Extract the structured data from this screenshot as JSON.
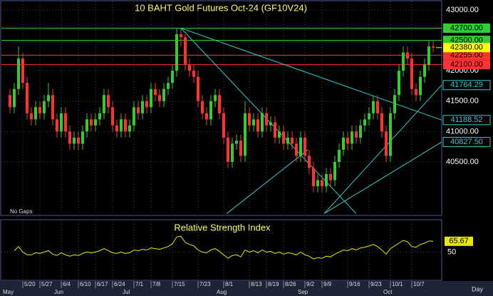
{
  "chart_data": {
    "type": "candlestick",
    "title": "10 BAHT Gold Futures Oct-24 (GF10V24)",
    "note": "No Gaps",
    "interval": "Day",
    "up_color": "#33cc33",
    "down_color": "#ff3333",
    "grid": true,
    "ylim": [
      39620,
      43140
    ],
    "yticks": [
      {
        "value": 43000,
        "label": "43000.00"
      },
      {
        "value": 42000,
        "label": "42000.00"
      },
      {
        "value": 41500,
        "label": "41500.00"
      },
      {
        "value": 41000,
        "label": "41000.00"
      },
      {
        "value": 40500,
        "label": "40500.00"
      }
    ],
    "categories": [
      null,
      null,
      null,
      "5/20",
      null,
      null,
      null,
      "5/27",
      null,
      null,
      null,
      null,
      "6/4",
      null,
      null,
      null,
      "6/10",
      null,
      null,
      null,
      "6/17",
      null,
      null,
      null,
      "6/24",
      null,
      null,
      null,
      null,
      "7/1",
      null,
      null,
      null,
      "7/8",
      null,
      null,
      null,
      null,
      "7/15",
      null,
      null,
      null,
      null,
      null,
      "7/23",
      null,
      null,
      null,
      null,
      null,
      "8/1",
      null,
      null,
      null,
      null,
      null,
      "8/13",
      null,
      null,
      null,
      "8/19",
      null,
      null,
      null,
      "8/26",
      null,
      null,
      null,
      null,
      "9/2",
      null,
      null,
      null,
      "9/9",
      null,
      null,
      null,
      null,
      null,
      "9/16",
      null,
      null,
      null,
      null,
      "9/23",
      null,
      null,
      null,
      null,
      "10/1",
      null,
      null,
      null,
      null,
      "10/7",
      null,
      null,
      null,
      null,
      null
    ],
    "months": [
      {
        "index": 0,
        "label": "May"
      },
      {
        "index": 12,
        "label": "Jun"
      },
      {
        "index": 28,
        "label": "Jul"
      },
      {
        "index": 50,
        "label": "Aug"
      },
      {
        "index": 69,
        "label": "Sep"
      },
      {
        "index": 89,
        "label": "Oct"
      }
    ],
    "candles": [
      [
        41600,
        41700,
        41300,
        41400
      ],
      [
        41400,
        41800,
        41300,
        41700
      ],
      [
        41700,
        42400,
        41600,
        42200
      ],
      [
        42200,
        42300,
        41700,
        41800
      ],
      [
        41800,
        41900,
        41200,
        41300
      ],
      [
        41300,
        41400,
        41100,
        41200
      ],
      [
        41200,
        41500,
        41100,
        41400
      ],
      [
        41400,
        41500,
        41200,
        41300
      ],
      [
        41300,
        41600,
        41200,
        41500
      ],
      [
        41500,
        41800,
        41400,
        41600
      ],
      [
        41600,
        41700,
        41100,
        41200
      ],
      [
        41200,
        41300,
        40900,
        41000
      ],
      [
        41000,
        41400,
        40900,
        41300
      ],
      [
        41300,
        41400,
        40900,
        41000
      ],
      [
        41000,
        41100,
        40700,
        40800
      ],
      [
        40800,
        41000,
        40700,
        40900
      ],
      [
        40900,
        41000,
        40700,
        40800
      ],
      [
        40800,
        41100,
        40700,
        41000
      ],
      [
        41000,
        41300,
        40900,
        41200
      ],
      [
        41200,
        41300,
        41000,
        41100
      ],
      [
        41100,
        41300,
        41000,
        41200
      ],
      [
        41200,
        41400,
        41100,
        41300
      ],
      [
        41300,
        41700,
        41200,
        41600
      ],
      [
        41600,
        41700,
        41300,
        41400
      ],
      [
        41400,
        41500,
        41000,
        41100
      ],
      [
        41100,
        41200,
        40900,
        41000
      ],
      [
        41000,
        41300,
        40900,
        41200
      ],
      [
        41200,
        41300,
        40900,
        41000
      ],
      [
        41000,
        41200,
        40900,
        41100
      ],
      [
        41100,
        41500,
        41000,
        41400
      ],
      [
        41400,
        41500,
        41200,
        41300
      ],
      [
        41300,
        41600,
        41200,
        41500
      ],
      [
        41500,
        41600,
        41300,
        41400
      ],
      [
        41400,
        41800,
        41300,
        41700
      ],
      [
        41700,
        41800,
        41500,
        41600
      ],
      [
        41600,
        41700,
        41400,
        41500
      ],
      [
        41500,
        41800,
        41400,
        41700
      ],
      [
        41700,
        41900,
        41600,
        41800
      ],
      [
        41800,
        42100,
        41700,
        42000
      ],
      [
        42000,
        42700,
        41900,
        42600
      ],
      [
        42600,
        42700,
        42400,
        42550
      ],
      [
        42550,
        42600,
        42000,
        42100
      ],
      [
        42100,
        42200,
        41900,
        42000
      ],
      [
        42000,
        42100,
        41800,
        41900
      ],
      [
        41900,
        42000,
        41400,
        41500
      ],
      [
        41500,
        41600,
        41200,
        41300
      ],
      [
        41300,
        41400,
        41100,
        41200
      ],
      [
        41200,
        41600,
        41100,
        41500
      ],
      [
        41500,
        41700,
        41400,
        41600
      ],
      [
        41600,
        41700,
        41200,
        41300
      ],
      [
        41300,
        41400,
        40800,
        40900
      ],
      [
        40900,
        41000,
        40400,
        40500
      ],
      [
        40500,
        40900,
        40400,
        40800
      ],
      [
        40800,
        40950,
        40700,
        40850
      ],
      [
        40850,
        40950,
        40500,
        40600
      ],
      [
        40600,
        41500,
        40500,
        41300
      ],
      [
        41300,
        41400,
        41000,
        41100
      ],
      [
        41100,
        41300,
        41000,
        41200
      ],
      [
        41200,
        41300,
        40900,
        41000
      ],
      [
        41000,
        41400,
        40900,
        41300
      ],
      [
        41300,
        41400,
        41000,
        41100
      ],
      [
        41100,
        41250,
        41000,
        41150
      ],
      [
        41150,
        41250,
        40800,
        40900
      ],
      [
        40900,
        41100,
        40800,
        41000
      ],
      [
        41000,
        41100,
        40700,
        40800
      ],
      [
        40800,
        41000,
        40700,
        40900
      ],
      [
        40900,
        41000,
        40700,
        40800
      ],
      [
        40800,
        40900,
        40500,
        40600
      ],
      [
        40600,
        41000,
        40500,
        40900
      ],
      [
        40900,
        41000,
        40500,
        40600
      ],
      [
        40600,
        40700,
        40300,
        40400
      ],
      [
        40400,
        40500,
        40000,
        40100
      ],
      [
        40100,
        40300,
        40000,
        40200
      ],
      [
        40200,
        40300,
        40000,
        40100
      ],
      [
        40100,
        40400,
        40000,
        40300
      ],
      [
        40300,
        40400,
        40100,
        40200
      ],
      [
        40200,
        40600,
        40100,
        40500
      ],
      [
        40500,
        40800,
        40400,
        40700
      ],
      [
        40700,
        41000,
        40600,
        40900
      ],
      [
        40900,
        41000,
        40700,
        40800
      ],
      [
        40800,
        41100,
        40700,
        41000
      ],
      [
        41000,
        41100,
        40800,
        40900
      ],
      [
        40900,
        41200,
        40800,
        41100
      ],
      [
        41100,
        41300,
        41000,
        41200
      ],
      [
        41200,
        41400,
        41100,
        41300
      ],
      [
        41300,
        41600,
        41200,
        41500
      ],
      [
        41500,
        41600,
        41200,
        41300
      ],
      [
        41300,
        41400,
        40900,
        41000
      ],
      [
        41000,
        41100,
        40500,
        40600
      ],
      [
        40600,
        41400,
        40500,
        41300
      ],
      [
        41300,
        41700,
        41200,
        41600
      ],
      [
        41600,
        42100,
        41500,
        42000
      ],
      [
        42000,
        42400,
        41900,
        42300
      ],
      [
        42300,
        42400,
        42100,
        42200
      ],
      [
        42200,
        42300,
        41600,
        41700
      ],
      [
        41700,
        41800,
        41500,
        41600
      ],
      [
        41600,
        42000,
        41500,
        41900
      ],
      [
        41900,
        42200,
        41800,
        42100
      ],
      [
        42100,
        42500,
        42000,
        42400
      ],
      [
        42400,
        42500,
        42300,
        42380
      ]
    ],
    "levels": [
      {
        "value": 42700,
        "label": "42700.00",
        "color": "#33cc33"
      },
      {
        "value": 42500,
        "label": "42500.00",
        "color": "#33cc33"
      },
      {
        "value": 42255,
        "label": "42255.00",
        "color": "#ff3333"
      },
      {
        "value": 42100,
        "label": "42100.00",
        "color": "#ff3333"
      }
    ],
    "last": {
      "value": 42380,
      "label": "42380.00",
      "color": "#ffff00"
    },
    "trendline_color": "#33cccc",
    "trendlines": [
      {
        "from": [
          40,
          42700
        ],
        "to": [
          101,
          41188.52
        ],
        "label": "41188.52"
      },
      {
        "from": [
          40,
          42700
        ],
        "to": [
          81,
          39650
        ]
      },
      {
        "from": [
          50.7,
          39650
        ],
        "to": [
          69.7,
          40700
        ]
      },
      {
        "from": [
          73.5,
          39650
        ],
        "to": [
          101,
          41764.29
        ],
        "label": "41764.29"
      },
      {
        "from": [
          73.5,
          39650
        ],
        "to": [
          101,
          40827.5
        ],
        "label": "40827.50"
      }
    ],
    "rsi": {
      "title": "Relative Strength Index",
      "color": "#e8e800",
      "ylim": [
        10,
        95
      ],
      "yticks": [
        50
      ],
      "values": [
        null,
        52,
        58,
        50,
        46,
        46,
        49,
        48,
        50,
        52,
        47,
        45,
        49,
        46,
        44,
        46,
        45,
        48,
        50,
        49,
        50,
        52,
        55,
        52,
        49,
        48,
        50,
        48,
        49,
        53,
        52,
        54,
        53,
        56,
        55,
        54,
        56,
        58,
        62,
        72,
        73,
        64,
        61,
        59,
        53,
        50,
        49,
        53,
        55,
        51,
        46,
        41,
        45,
        46,
        43,
        53,
        50,
        52,
        49,
        53,
        50,
        51,
        48,
        50,
        47,
        49,
        48,
        46,
        50,
        46,
        44,
        40,
        42,
        41,
        44,
        43,
        47,
        50,
        53,
        52,
        55,
        53,
        56,
        57,
        59,
        61,
        58,
        53,
        47,
        55,
        59,
        63,
        67,
        65,
        58,
        57,
        61,
        63,
        66,
        65.67
      ]
    }
  }
}
